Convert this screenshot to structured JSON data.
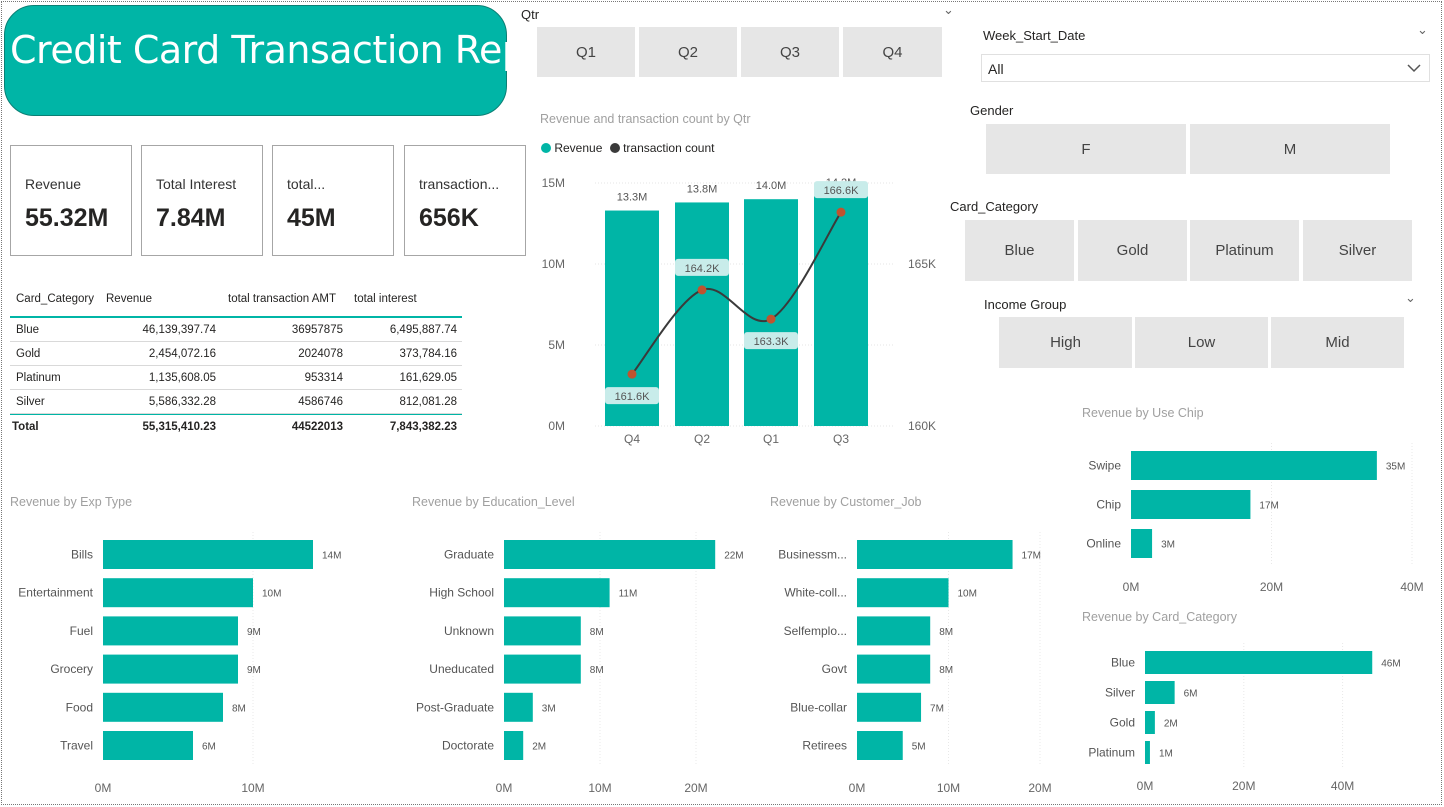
{
  "title": "Credit Card Transaction Report",
  "kpis": [
    {
      "label": "Revenue",
      "value": "55.32M"
    },
    {
      "label": "Total Interest",
      "value": "7.84M"
    },
    {
      "label": "total...",
      "value": "45M"
    },
    {
      "label": "transaction...",
      "value": "656K"
    }
  ],
  "table": {
    "headers": [
      "Card_Category",
      "Revenue",
      "total transaction AMT",
      "total interest"
    ],
    "rows": [
      [
        "Blue",
        "46,139,397.74",
        "36957875",
        "6,495,887.74"
      ],
      [
        "Gold",
        "2,454,072.16",
        "2024078",
        "373,784.16"
      ],
      [
        "Platinum",
        "1,135,608.05",
        "953314",
        "161,629.05"
      ],
      [
        "Silver",
        "5,586,332.28",
        "4586746",
        "812,081.28"
      ]
    ],
    "total": [
      "Total",
      "55,315,410.23",
      "44522013",
      "7,843,382.23"
    ]
  },
  "qtr_slicer": {
    "title": "Qtr",
    "options": [
      "Q1",
      "Q2",
      "Q3",
      "Q4"
    ]
  },
  "week_slicer": {
    "title": "Week_Start_Date",
    "value": "All"
  },
  "gender_slicer": {
    "title": "Gender",
    "options": [
      "F",
      "M"
    ]
  },
  "card_slicer": {
    "title": "Card_Category",
    "options": [
      "Blue",
      "Gold",
      "Platinum",
      "Silver"
    ]
  },
  "income_slicer": {
    "title": "Income Group",
    "options": [
      "High",
      "Low",
      "Mid"
    ]
  },
  "colors": {
    "teal": "#00b5a6",
    "line": "#3a3a3a",
    "marker": "#c0532f",
    "label_bg": "#c8ecea"
  },
  "chart_data": [
    {
      "id": "combo",
      "type": "bar",
      "title": "Revenue and transaction count by Qtr",
      "categories": [
        "Q4",
        "Q2",
        "Q1",
        "Q3"
      ],
      "series": [
        {
          "name": "Revenue",
          "values": [
            13.3,
            13.8,
            14.0,
            14.2
          ],
          "labels": [
            "13.3M",
            "13.8M",
            "14.0M",
            "14.2M"
          ]
        },
        {
          "name": "transaction count",
          "type": "line",
          "values": [
            161.6,
            164.2,
            163.3,
            166.6
          ],
          "labels": [
            "161.6K",
            "164.2K",
            "163.3K",
            "166.6K"
          ]
        }
      ],
      "ylim": [
        0,
        15
      ],
      "y_ticks": [
        "0M",
        "5M",
        "10M",
        "15M"
      ],
      "y2lim": [
        160,
        167.5
      ],
      "y2_ticks": [
        "160K",
        "165K"
      ],
      "legend": "top-left"
    },
    {
      "id": "exp",
      "type": "bar",
      "orientation": "horizontal",
      "title": "Revenue by Exp Type",
      "categories": [
        "Bills",
        "Entertainment",
        "Fuel",
        "Grocery",
        "Food",
        "Travel"
      ],
      "values": [
        14,
        10,
        9,
        9,
        8,
        6
      ],
      "labels": [
        "14M",
        "10M",
        "9M",
        "9M",
        "8M",
        "6M"
      ],
      "xlim": [
        0,
        15
      ],
      "x_ticks": [
        "0M",
        "10M"
      ]
    },
    {
      "id": "edu",
      "type": "bar",
      "orientation": "horizontal",
      "title": "Revenue by Education_Level",
      "categories": [
        "Graduate",
        "High School",
        "Unknown",
        "Uneducated",
        "Post-Graduate",
        "Doctorate"
      ],
      "values": [
        22,
        11,
        8,
        8,
        3,
        2
      ],
      "labels": [
        "22M",
        "11M",
        "8M",
        "8M",
        "3M",
        "2M"
      ],
      "xlim": [
        0,
        25
      ],
      "x_ticks": [
        "0M",
        "10M",
        "20M"
      ]
    },
    {
      "id": "job",
      "type": "bar",
      "orientation": "horizontal",
      "title": "Revenue by Customer_Job",
      "categories": [
        "Businessm...",
        "White-coll...",
        "Selfemplo...",
        "Govt",
        "Blue-collar",
        "Retirees"
      ],
      "values": [
        17,
        10,
        8,
        8,
        7,
        5
      ],
      "labels": [
        "17M",
        "10M",
        "8M",
        "8M",
        "7M",
        "5M"
      ],
      "xlim": [
        0,
        20
      ],
      "x_ticks": [
        "0M",
        "10M",
        "20M"
      ]
    },
    {
      "id": "chip",
      "type": "bar",
      "orientation": "horizontal",
      "title": "Revenue by Use Chip",
      "categories": [
        "Swipe",
        "Chip",
        "Online"
      ],
      "values": [
        35,
        17,
        3
      ],
      "labels": [
        "35M",
        "17M",
        "3M"
      ],
      "xlim": [
        0,
        40
      ],
      "x_ticks": [
        "0M",
        "20M",
        "40M"
      ]
    },
    {
      "id": "cardcat",
      "type": "bar",
      "orientation": "horizontal",
      "title": "Revenue by Card_Category",
      "categories": [
        "Blue",
        "Silver",
        "Gold",
        "Platinum"
      ],
      "values": [
        46,
        6,
        2,
        1
      ],
      "labels": [
        "46M",
        "6M",
        "2M",
        "1M"
      ],
      "xlim": [
        0,
        50
      ],
      "x_ticks": [
        "0M",
        "20M",
        "40M"
      ]
    }
  ]
}
